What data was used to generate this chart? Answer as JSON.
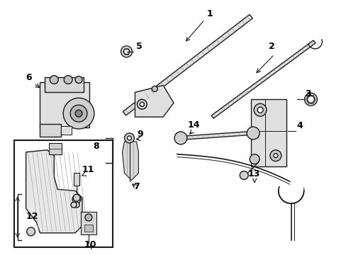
{
  "bg_color": "#ffffff",
  "line_color": "#1a1a1a",
  "gray_fill": "#d8d8d8",
  "gray_dark": "#b0b0b0",
  "fig_width": 4.89,
  "fig_height": 3.6,
  "dpi": 100
}
